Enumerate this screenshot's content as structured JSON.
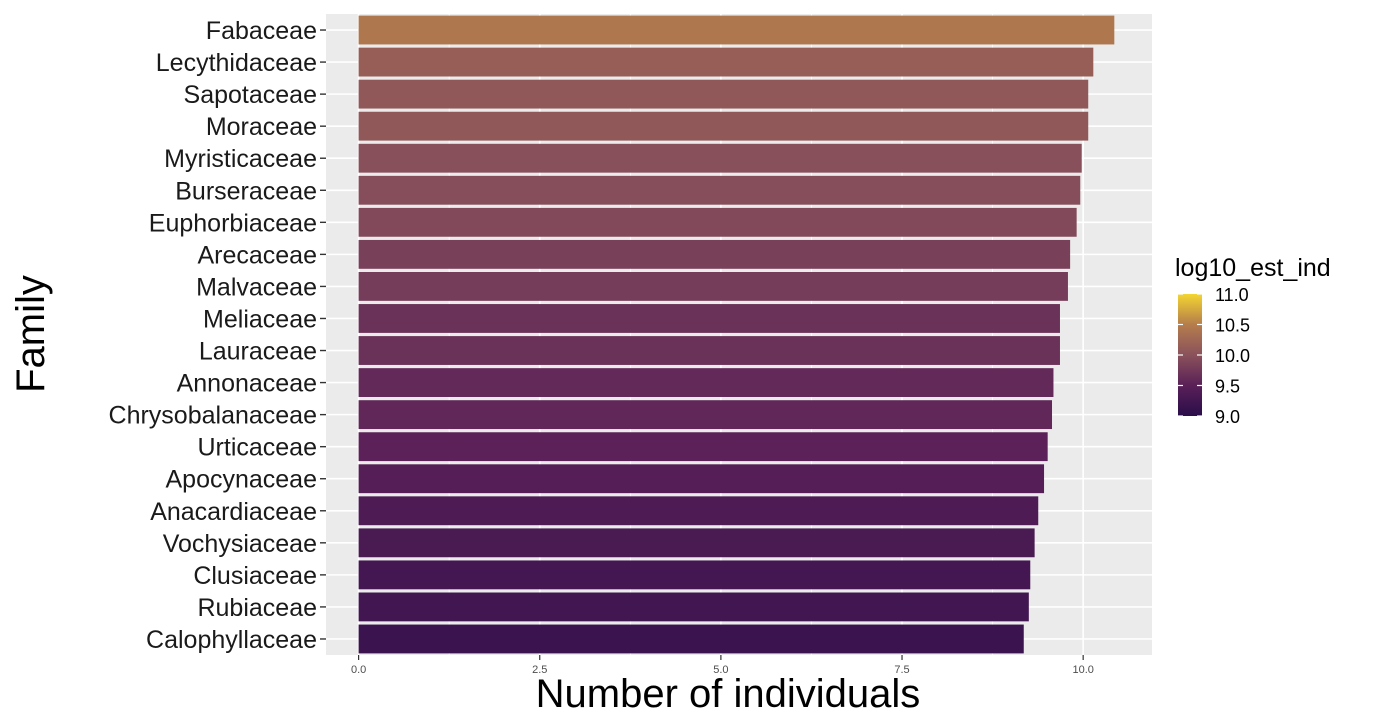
{
  "chart_data": {
    "type": "bar",
    "orientation": "horizontal",
    "xlabel": "Number of individuals",
    "ylabel": "Family",
    "xlim": [
      -0.45,
      10.95
    ],
    "xticks": [
      0.0,
      2.5,
      5.0,
      7.5,
      10.0
    ],
    "xtick_labels": [
      "0.0",
      "2.5",
      "5.0",
      "7.5",
      "10.0"
    ],
    "grid": true,
    "categories": [
      "Fabaceae",
      "Lecythidaceae",
      "Sapotaceae",
      "Moraceae",
      "Myristicaceae",
      "Burseraceae",
      "Euphorbiaceae",
      "Arecaceae",
      "Malvaceae",
      "Meliaceae",
      "Lauraceae",
      "Annonaceae",
      "Chrysobalanaceae",
      "Urticaceae",
      "Apocynaceae",
      "Anacardiaceae",
      "Vochysiaceae",
      "Clusiaceae",
      "Rubiaceae",
      "Calophyllaceae"
    ],
    "values": [
      10.43,
      10.14,
      10.07,
      10.07,
      9.98,
      9.96,
      9.91,
      9.82,
      9.79,
      9.68,
      9.68,
      9.59,
      9.57,
      9.51,
      9.46,
      9.38,
      9.33,
      9.27,
      9.25,
      9.18
    ],
    "legend": {
      "title": "log10_est_ind",
      "placement": "right",
      "range": [
        9.0,
        11.0
      ],
      "ticks": [
        9.0,
        9.5,
        10.0,
        10.5,
        11.0
      ],
      "tick_labels": [
        "9.0",
        "9.5",
        "10.0",
        "10.5",
        "11.0"
      ],
      "colors_low_to_high": [
        "#2a0d4a",
        "#5a2058",
        "#8a525b",
        "#b57d4c",
        "#f3d531"
      ]
    },
    "panel_background": "#ebebeb",
    "grid_color": "#ffffff"
  }
}
